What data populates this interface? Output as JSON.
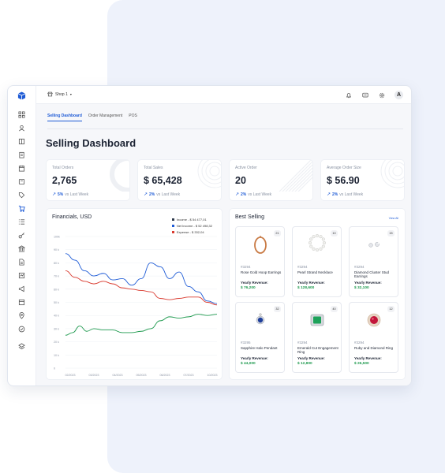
{
  "topbar": {
    "shop_label": "Shop 1",
    "avatar_initial": "A"
  },
  "tabs": [
    "Selling Dashboard",
    "Order Management",
    "POS"
  ],
  "page_title": "Selling Dashboard",
  "stats": [
    {
      "label": "Total Orders",
      "value": "2,765",
      "change": "5%",
      "suffix": "vs Last Week"
    },
    {
      "label": "Total Sales",
      "value": "$ 65,428",
      "change": "2%",
      "suffix": "vs Last Week"
    },
    {
      "label": "Active Order",
      "value": "20",
      "change": "2%",
      "suffix": "vs Last Week"
    },
    {
      "label": "Average Order Size",
      "value": "$ 56.90",
      "change": "2%",
      "suffix": "vs Last Week"
    }
  ],
  "financials": {
    "title": "Financials, USD",
    "legend": [
      {
        "label": "Income - $ 54 477,01",
        "color": "#2f3a4c"
      },
      {
        "label": "Net Income - $ 52 498,32",
        "color": "#1e5bd6"
      },
      {
        "label": "Expense - $ 332,04",
        "color": "#d93a2f"
      }
    ]
  },
  "chart_data": {
    "type": "line",
    "ylabels": [
      "100k",
      "90 k",
      "80 k",
      "70 k",
      "60 k",
      "50 k",
      "40 k",
      "30 k",
      "20 k",
      "10 k",
      "0"
    ],
    "xlabels": [
      "02/2023",
      "03/2023",
      "04/2023",
      "05/2023",
      "06/2023",
      "07/2023",
      "10/2023"
    ],
    "ylim": [
      0,
      100
    ],
    "grid": true,
    "series": [
      {
        "color": "#1e5bd6",
        "points": [
          [
            0,
            87
          ],
          [
            0.4,
            82
          ],
          [
            0.8,
            74
          ],
          [
            1.2,
            70
          ],
          [
            1.6,
            72
          ],
          [
            2.0,
            67
          ],
          [
            2.4,
            68
          ],
          [
            2.8,
            63
          ],
          [
            3.2,
            68
          ],
          [
            3.6,
            80
          ],
          [
            4.0,
            77
          ],
          [
            4.4,
            68
          ],
          [
            4.8,
            73
          ],
          [
            5.2,
            62
          ],
          [
            5.6,
            58
          ],
          [
            6.0,
            51
          ],
          [
            6.4,
            49
          ]
        ]
      },
      {
        "color": "#d93a2f",
        "points": [
          [
            0,
            74
          ],
          [
            0.4,
            69
          ],
          [
            0.8,
            66
          ],
          [
            1.2,
            64
          ],
          [
            1.6,
            66
          ],
          [
            2.0,
            64
          ],
          [
            2.4,
            61
          ],
          [
            2.8,
            60
          ],
          [
            3.2,
            59
          ],
          [
            3.6,
            58
          ],
          [
            4.0,
            53
          ],
          [
            4.4,
            52
          ],
          [
            4.8,
            53
          ],
          [
            5.2,
            54
          ],
          [
            5.6,
            54
          ],
          [
            6.0,
            50
          ],
          [
            6.4,
            48
          ]
        ]
      },
      {
        "color": "#1f9a4f",
        "points": [
          [
            0,
            25
          ],
          [
            0.3,
            27
          ],
          [
            0.6,
            32
          ],
          [
            0.9,
            28
          ],
          [
            1.2,
            30
          ],
          [
            1.6,
            29
          ],
          [
            2.0,
            29
          ],
          [
            2.4,
            27
          ],
          [
            2.8,
            27
          ],
          [
            3.2,
            28
          ],
          [
            3.6,
            30
          ],
          [
            4.0,
            36
          ],
          [
            4.4,
            39
          ],
          [
            4.8,
            38
          ],
          [
            5.2,
            39
          ],
          [
            5.6,
            41
          ],
          [
            6.0,
            40
          ],
          [
            6.4,
            41
          ]
        ]
      }
    ]
  },
  "best_selling": {
    "title": "Best Selling",
    "see_all": "View All",
    "revenue_label": "Yearly Revenue:",
    "products": [
      {
        "badge": "21",
        "id": "#3294",
        "name": "Rose Gold Hoop Earrings",
        "revenue": "$ 76,200",
        "icon": "hoop-earring-icon"
      },
      {
        "badge": "10",
        "id": "#3294",
        "name": "Pearl Strand Necklace",
        "revenue": "$ 128,600",
        "icon": "pearl-necklace-icon"
      },
      {
        "badge": "15",
        "id": "#3294",
        "name": "Diamond Cluster Stud Earrings",
        "revenue": "$ 32,100",
        "icon": "stud-earrings-icon"
      },
      {
        "badge": "32",
        "id": "#3295",
        "name": "Sapphire Halo Pendant",
        "revenue": "$ 44,000",
        "icon": "sapphire-pendant-icon"
      },
      {
        "badge": "40",
        "id": "#3294",
        "name": "Emerald Cut Engagement Ring",
        "revenue": "$ 12,800",
        "icon": "emerald-ring-icon"
      },
      {
        "badge": "12",
        "id": "#3294",
        "name": "Ruby and Diamond Ring",
        "revenue": "$ 26,500",
        "icon": "ruby-ring-icon"
      }
    ]
  },
  "colors": {
    "accent": "#1e5bd6",
    "positive": "#1f9a4f",
    "expense": "#d93a2f"
  }
}
